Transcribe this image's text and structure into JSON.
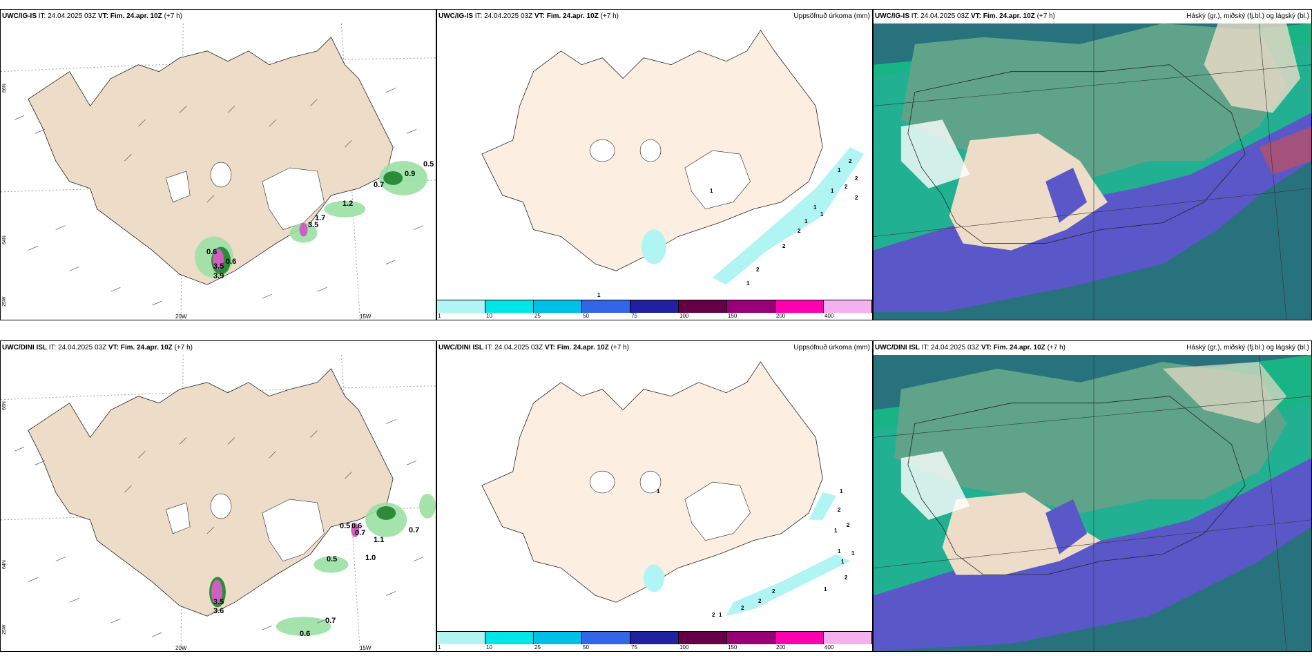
{
  "rows": [
    {
      "model": "UWC/IG-IS",
      "it_label": "IT:",
      "it_value": "24.04.2025 03Z",
      "vt_label": "VT:",
      "vt_value": "Fim. 24.apr. 10Z",
      "lead": "(+7 h)",
      "precip_title": "Uppsöfnuð úrkoma (mm)",
      "cloud_title": "Háský (gr.), miðský (fj.bl.) og lágský (bl.)",
      "wind_values": [
        "0.5",
        "0.9",
        "0.7",
        "1.2",
        "1.7",
        "3.5",
        "0.6",
        "3.5",
        "0.6",
        "3.9"
      ],
      "precip_values": [
        "1",
        "2",
        "2",
        "1",
        "1",
        "2",
        "2",
        "1",
        "1",
        "1",
        "2",
        "2",
        "2",
        "1",
        "1"
      ]
    },
    {
      "model": "UWC/DINI ISL",
      "it_label": "IT:",
      "it_value": "24.04.2025 03Z",
      "vt_label": "VT:",
      "vt_value": "Fim. 24.apr. 10Z",
      "lead": "(+7 h)",
      "precip_title": "Uppsöfnuð úrkoma (mm)",
      "cloud_title": "Háský (gr.), miðský (fj.bl.) og lágský (bl.)",
      "wind_values": [
        "0.7",
        "1.1",
        "0.5",
        "0.6",
        "0.7",
        "1.0",
        "0.5",
        "3.5",
        "3.6",
        "0.7",
        "0.6"
      ],
      "precip_values": [
        "1",
        "1",
        "2",
        "2",
        "1",
        "1",
        "1",
        "1",
        "2",
        "1",
        "2",
        "2",
        "2",
        "2",
        "1"
      ]
    }
  ],
  "axis": {
    "lat_66": "66N",
    "lat_64": "64N",
    "lon_20": "20W",
    "lon_15": "15W",
    "lon_25": "25W"
  },
  "colorbar": {
    "ticks": [
      "1",
      "10",
      "25",
      "50",
      "75",
      "100",
      "150",
      "200",
      "400"
    ],
    "colors": [
      "#b0f4f4",
      "#00e6e6",
      "#00bfe6",
      "#3366e6",
      "#2020a0",
      "#660044",
      "#990077",
      "#ff00b0",
      "#f5b0f0"
    ]
  },
  "colors": {
    "land": "#eddcc8",
    "land_precip": "#fcefe2",
    "cloud_high": "#5fa38a",
    "cloud_mid": "#17c087",
    "cloud_low": "#5a58c8",
    "cloud_dark": "#27727d"
  }
}
